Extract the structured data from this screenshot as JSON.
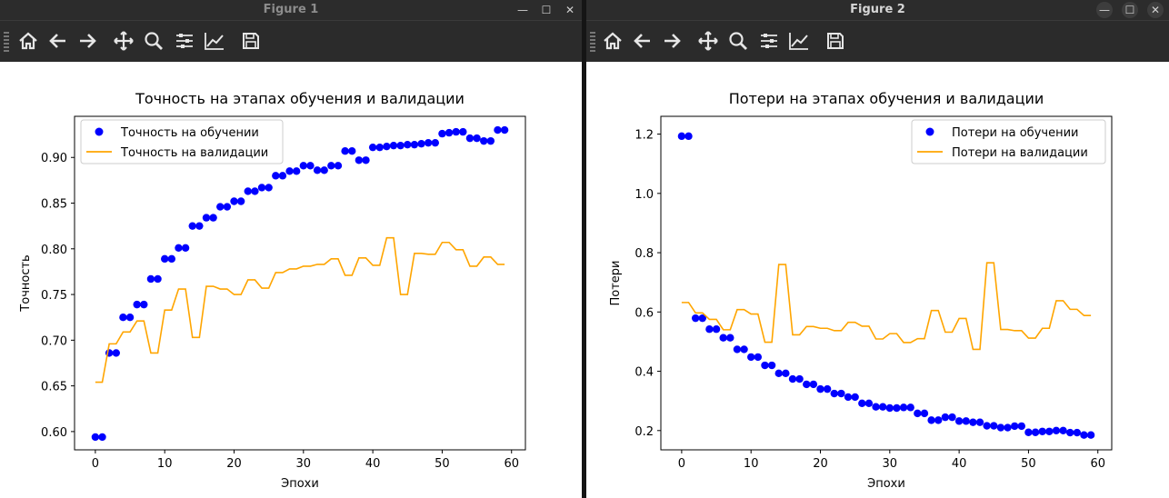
{
  "windows": [
    {
      "title": "Figure 1",
      "controls": {
        "minimize": "—",
        "maximize": "☐",
        "close": "✕"
      }
    },
    {
      "title": "Figure 2",
      "controls": {
        "minimize": "—",
        "maximize": "☐",
        "close": "✕"
      }
    }
  ],
  "toolbar_icons": [
    "home-icon",
    "back-arrow-icon",
    "forward-arrow-icon",
    "pan-icon",
    "zoom-icon",
    "configure-subplots-icon",
    "edit-axes-icon",
    "save-icon"
  ],
  "colors": {
    "train": "#0000ff",
    "val": "#ffa500"
  },
  "chart_data": [
    {
      "type": "line",
      "title": "Точность на этапах обучения и валидации",
      "xlabel": "Эпохи",
      "ylabel": "Точность",
      "xlim": [
        -3,
        62
      ],
      "ylim": [
        0.58,
        0.945
      ],
      "xticks": [
        0,
        10,
        20,
        30,
        40,
        50,
        60
      ],
      "yticks": [
        0.6,
        0.65,
        0.7,
        0.75,
        0.8,
        0.85,
        0.9
      ],
      "ytick_decimals": 2,
      "legend": "upper-left",
      "grid": false,
      "series": [
        {
          "name": "Точность на обучении",
          "style": "dots",
          "color": "#0000ff",
          "values": [
            0.594,
            0.594,
            0.686,
            0.686,
            0.725,
            0.725,
            0.739,
            0.739,
            0.767,
            0.767,
            0.789,
            0.789,
            0.801,
            0.801,
            0.825,
            0.825,
            0.834,
            0.834,
            0.846,
            0.846,
            0.852,
            0.852,
            0.863,
            0.863,
            0.867,
            0.867,
            0.88,
            0.88,
            0.885,
            0.885,
            0.891,
            0.891,
            0.886,
            0.886,
            0.891,
            0.891,
            0.907,
            0.907,
            0.897,
            0.897,
            0.911,
            0.911,
            0.912,
            0.913,
            0.913,
            0.914,
            0.914,
            0.915,
            0.916,
            0.916,
            0.926,
            0.927,
            0.928,
            0.928,
            0.921,
            0.921,
            0.918,
            0.918,
            0.93,
            0.93
          ]
        },
        {
          "name": "Точность на валидации",
          "style": "line",
          "color": "#ffa500",
          "values": [
            0.654,
            0.654,
            0.696,
            0.696,
            0.709,
            0.709,
            0.721,
            0.721,
            0.686,
            0.686,
            0.733,
            0.733,
            0.756,
            0.756,
            0.703,
            0.703,
            0.759,
            0.759,
            0.756,
            0.756,
            0.75,
            0.75,
            0.766,
            0.766,
            0.757,
            0.757,
            0.774,
            0.774,
            0.778,
            0.778,
            0.781,
            0.781,
            0.783,
            0.783,
            0.789,
            0.789,
            0.771,
            0.771,
            0.79,
            0.79,
            0.782,
            0.782,
            0.812,
            0.812,
            0.75,
            0.75,
            0.795,
            0.795,
            0.794,
            0.794,
            0.807,
            0.807,
            0.799,
            0.799,
            0.781,
            0.781,
            0.791,
            0.791,
            0.783,
            0.783
          ]
        }
      ]
    },
    {
      "type": "line",
      "title": "Потери на этапах обучения и валидации",
      "xlabel": "Эпохи",
      "ylabel": "Потери",
      "xlim": [
        -3,
        62
      ],
      "ylim": [
        0.135,
        1.26
      ],
      "xticks": [
        0,
        10,
        20,
        30,
        40,
        50,
        60
      ],
      "yticks": [
        0.2,
        0.4,
        0.6,
        0.8,
        1.0,
        1.2
      ],
      "ytick_decimals": 1,
      "legend": "upper-right",
      "grid": false,
      "series": [
        {
          "name": "Потери на обучении",
          "style": "dots",
          "color": "#0000ff",
          "values": [
            1.193,
            1.193,
            0.579,
            0.579,
            0.542,
            0.542,
            0.513,
            0.513,
            0.474,
            0.474,
            0.448,
            0.448,
            0.42,
            0.42,
            0.393,
            0.393,
            0.374,
            0.374,
            0.356,
            0.356,
            0.34,
            0.34,
            0.325,
            0.325,
            0.313,
            0.313,
            0.292,
            0.292,
            0.28,
            0.28,
            0.276,
            0.276,
            0.278,
            0.278,
            0.258,
            0.258,
            0.235,
            0.235,
            0.245,
            0.245,
            0.232,
            0.232,
            0.228,
            0.228,
            0.216,
            0.216,
            0.21,
            0.21,
            0.215,
            0.215,
            0.194,
            0.194,
            0.197,
            0.197,
            0.2,
            0.2,
            0.193,
            0.193,
            0.185,
            0.185
          ]
        },
        {
          "name": "Потери на валидации",
          "style": "line",
          "color": "#ffa500",
          "values": [
            0.632,
            0.632,
            0.597,
            0.597,
            0.575,
            0.575,
            0.54,
            0.54,
            0.608,
            0.608,
            0.593,
            0.593,
            0.498,
            0.498,
            0.76,
            0.76,
            0.523,
            0.523,
            0.551,
            0.551,
            0.545,
            0.545,
            0.537,
            0.537,
            0.565,
            0.565,
            0.552,
            0.552,
            0.509,
            0.509,
            0.527,
            0.527,
            0.497,
            0.497,
            0.51,
            0.51,
            0.605,
            0.605,
            0.532,
            0.532,
            0.578,
            0.578,
            0.474,
            0.474,
            0.766,
            0.766,
            0.541,
            0.541,
            0.537,
            0.537,
            0.512,
            0.512,
            0.545,
            0.545,
            0.638,
            0.638,
            0.609,
            0.609,
            0.588,
            0.588
          ]
        }
      ]
    }
  ]
}
